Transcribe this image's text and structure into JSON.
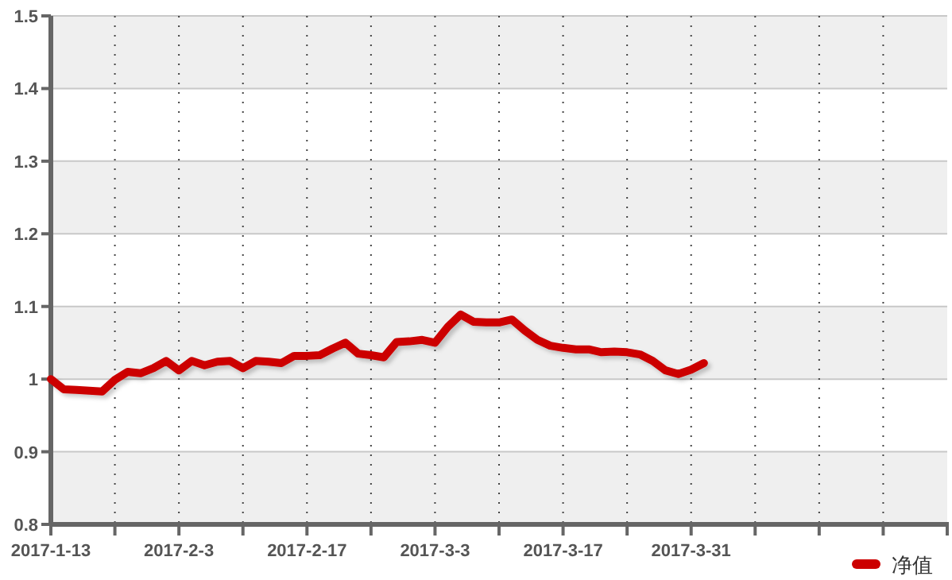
{
  "chart_data": {
    "type": "line",
    "categories": [
      "2017-1-13",
      null,
      null,
      null,
      null,
      null,
      null,
      null,
      null,
      null,
      "2017-2-3",
      null,
      null,
      null,
      null,
      null,
      null,
      null,
      null,
      null,
      "2017-2-17",
      null,
      null,
      null,
      null,
      null,
      null,
      null,
      null,
      null,
      "2017-3-3",
      null,
      null,
      null,
      null,
      null,
      null,
      null,
      null,
      null,
      "2017-3-17",
      null,
      null,
      null,
      null,
      null,
      null,
      null,
      null,
      null,
      "2017-3-31",
      null,
      null,
      null,
      null,
      null,
      null,
      null,
      null,
      null,
      null,
      null,
      null,
      null,
      null,
      null,
      null,
      null,
      null,
      null,
      null
    ],
    "series": [
      {
        "name": "净值",
        "color": "#cc0000",
        "values": [
          1.0,
          0.986,
          0.985,
          0.984,
          0.983,
          0.999,
          1.01,
          1.008,
          1.015,
          1.025,
          1.012,
          1.025,
          1.019,
          1.024,
          1.025,
          1.015,
          1.025,
          1.024,
          1.022,
          1.032,
          1.032,
          1.033,
          1.042,
          1.05,
          1.035,
          1.033,
          1.03,
          1.051,
          1.052,
          1.054,
          1.05,
          1.072,
          1.089,
          1.079,
          1.078,
          1.078,
          1.082,
          1.067,
          1.054,
          1.046,
          1.043,
          1.041,
          1.041,
          1.037,
          1.038,
          1.037,
          1.034,
          1.025,
          1.012,
          1.007,
          1.013,
          1.022,
          null,
          null,
          null,
          null,
          null,
          null,
          null,
          null,
          null,
          null,
          null,
          null,
          null,
          null,
          null,
          null,
          null,
          null,
          null
        ]
      }
    ],
    "ylim": [
      0.8,
      1.5
    ],
    "yticks": [
      0.8,
      0.9,
      1,
      1.1,
      1.2,
      1.3,
      1.4,
      1.5
    ],
    "grid": true,
    "legend": "bottom right",
    "marker": "none",
    "line_style": "solid"
  }
}
